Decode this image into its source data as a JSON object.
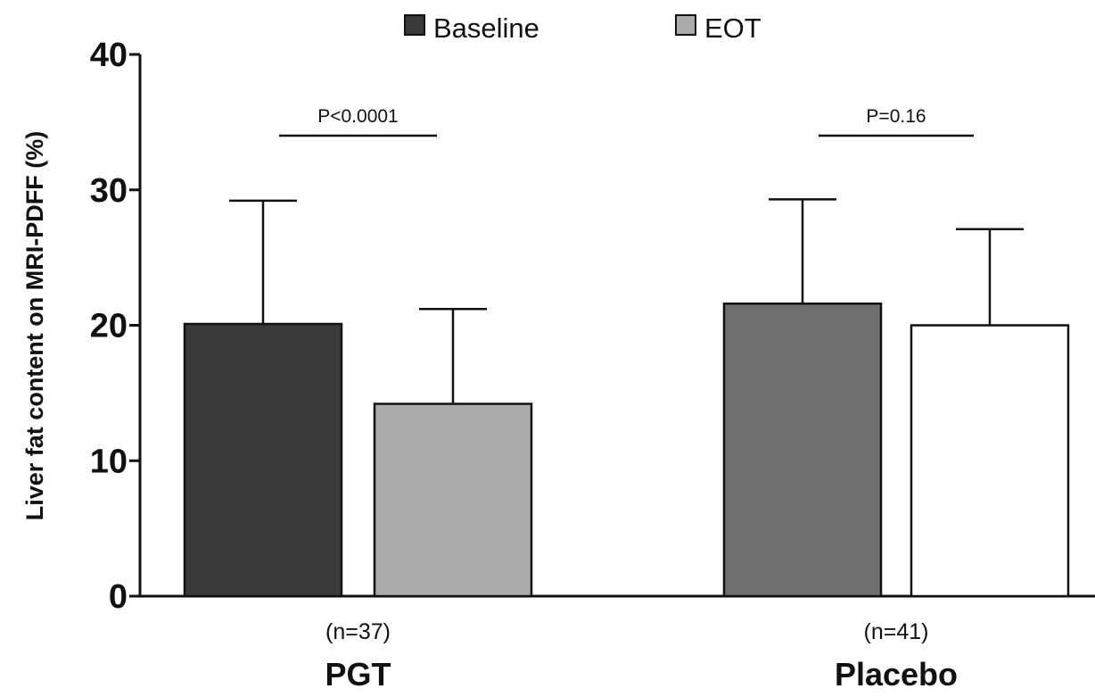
{
  "chart_data": {
    "type": "bar",
    "ylabel": "Liver fat content on MRI-PDFF (%)",
    "ylim": [
      0,
      40
    ],
    "yticks": [
      0,
      10,
      20,
      30,
      40
    ],
    "grid": false,
    "legend_position": "top-center",
    "groups": [
      {
        "label": "PGT",
        "n_label": "(n=37)",
        "p_label": "P<0.0001"
      },
      {
        "label": "Placebo",
        "n_label": "(n=41)",
        "p_label": "P=0.16"
      }
    ],
    "series": [
      {
        "name": "Baseline",
        "legend_color": "#3a3a3a",
        "colors": [
          "#3a3a3a",
          "#6f6f6f"
        ],
        "values": [
          20.1,
          21.6
        ],
        "error_upper": [
          29.2,
          29.3
        ]
      },
      {
        "name": "EOT",
        "legend_color": "#ababab",
        "colors": [
          "#ababab",
          "#ffffff"
        ],
        "values": [
          14.2,
          20.0
        ],
        "error_upper": [
          21.2,
          27.1
        ]
      }
    ]
  }
}
